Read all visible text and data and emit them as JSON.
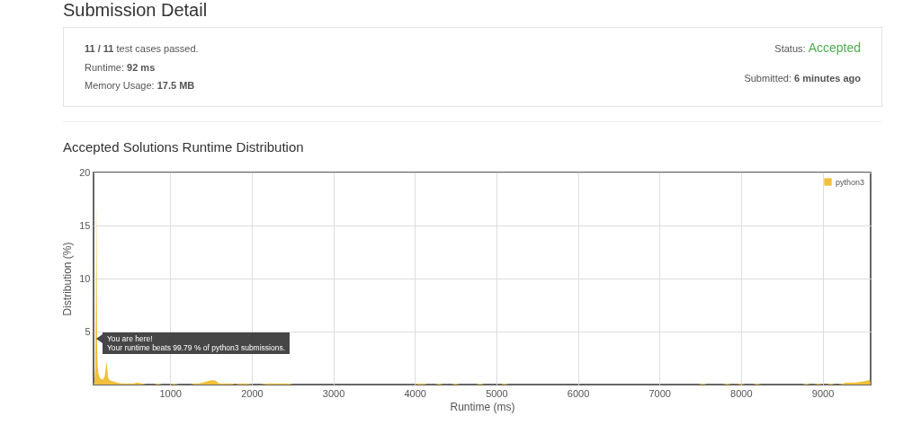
{
  "chart_data": [
    {
      "type": "other",
      "title": "Submission Detail",
      "annotations": [
        "11 / 11 test cases passed.",
        "Runtime: 92 ms",
        "Memory Usage: 17.5 MB",
        "Status: Accepted",
        "Submitted: 6 minutes ago"
      ]
    },
    {
      "type": "area",
      "title": "Accepted Solutions Runtime Distribution",
      "xlabel": "Runtime (ms)",
      "ylabel": "Distribution (%)",
      "series": [
        {
          "name": "python3",
          "color": "#f0c03c",
          "x": [
            60,
            70,
            80,
            86,
            92,
            96,
            100,
            104,
            110,
            120,
            140,
            160,
            180,
            200,
            210,
            220,
            230,
            240,
            260,
            300,
            350,
            400,
            450,
            500,
            550,
            600,
            650,
            700,
            800,
            850,
            900,
            1000,
            1050,
            1100,
            1250,
            1300,
            1350,
            1400,
            1450,
            1500,
            1550,
            1600,
            1650,
            1700,
            1750,
            1800,
            1850,
            1900,
            1950,
            2000,
            2100,
            2200,
            2300,
            2400,
            2450,
            2500,
            4000,
            4050,
            4100,
            4150,
            4250,
            4300,
            4350,
            4450,
            4500,
            4550,
            4750,
            4800,
            4850,
            5050,
            5100,
            5150,
            7480,
            7530,
            7580,
            7780,
            7830,
            7880,
            7950,
            8000,
            8050,
            8150,
            8200,
            8250,
            8750,
            8800,
            8850,
            8900,
            8950,
            9000,
            9050,
            9100,
            9150,
            9200,
            9250,
            9300,
            9400,
            9500,
            9560,
            9580,
            9590
          ],
          "values": [
            0,
            0.2,
            1.5,
            6,
            12,
            17,
            10,
            4,
            1.8,
            1,
            0.6,
            0.5,
            0.5,
            0.9,
            1.6,
            2.2,
            1.4,
            0.6,
            0.4,
            0.3,
            0.2,
            0.1,
            0.1,
            0.1,
            0.1,
            0.2,
            0.1,
            0,
            0,
            0.1,
            0,
            0,
            0.1,
            0,
            0,
            0.1,
            0.1,
            0.2,
            0.3,
            0.4,
            0.4,
            0.1,
            0.1,
            0.1,
            0.1,
            0,
            0.1,
            0.1,
            0.1,
            0,
            0,
            0.1,
            0.1,
            0.1,
            0.1,
            0,
            0,
            0.1,
            0.1,
            0,
            0,
            0.1,
            0,
            0,
            0.1,
            0,
            0,
            0.1,
            0,
            0,
            0.1,
            0,
            0,
            0.1,
            0,
            0,
            0.1,
            0,
            0,
            0.1,
            0,
            0,
            0.1,
            0,
            0,
            0.1,
            0,
            0,
            0.1,
            0,
            0,
            0.1,
            0,
            0,
            0.1,
            0.2,
            0.2,
            0.3,
            0.4,
            0.4,
            0
          ]
        }
      ],
      "xlim": [
        60,
        9590
      ],
      "xticks": [
        1000,
        2000,
        3000,
        4000,
        5000,
        6000,
        7000,
        8000,
        9000
      ],
      "ylim": [
        0,
        20
      ],
      "yticks": [
        5,
        10,
        15,
        20
      ],
      "grid": true,
      "legend": "top right",
      "annotations": [
        {
          "text": "You are here!",
          "x": 92,
          "y": 4.3
        },
        {
          "text": "Your runtime beats 99.79 % of python3 submissions.",
          "x": 92,
          "y": 4.3
        }
      ]
    }
  ]
}
